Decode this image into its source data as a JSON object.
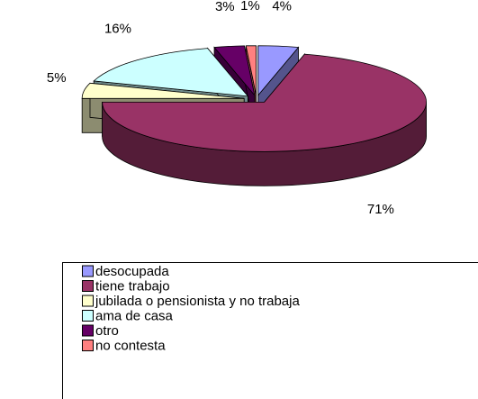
{
  "chart_data": {
    "type": "pie",
    "categories": [
      "desocupada",
      "tiene trabajo",
      "jubilada o pensionista y no trabaja",
      "ama de casa",
      "otro",
      "no contesta"
    ],
    "values": [
      4,
      71,
      5,
      16,
      3,
      1
    ],
    "value_labels": [
      "4%",
      "71%",
      "5%",
      "16%",
      "3%",
      "1%"
    ],
    "colors": [
      "#9999ff",
      "#993366",
      "#ffffcc",
      "#ccffff",
      "#660066",
      "#ff8080"
    ],
    "legend": "bottom"
  }
}
